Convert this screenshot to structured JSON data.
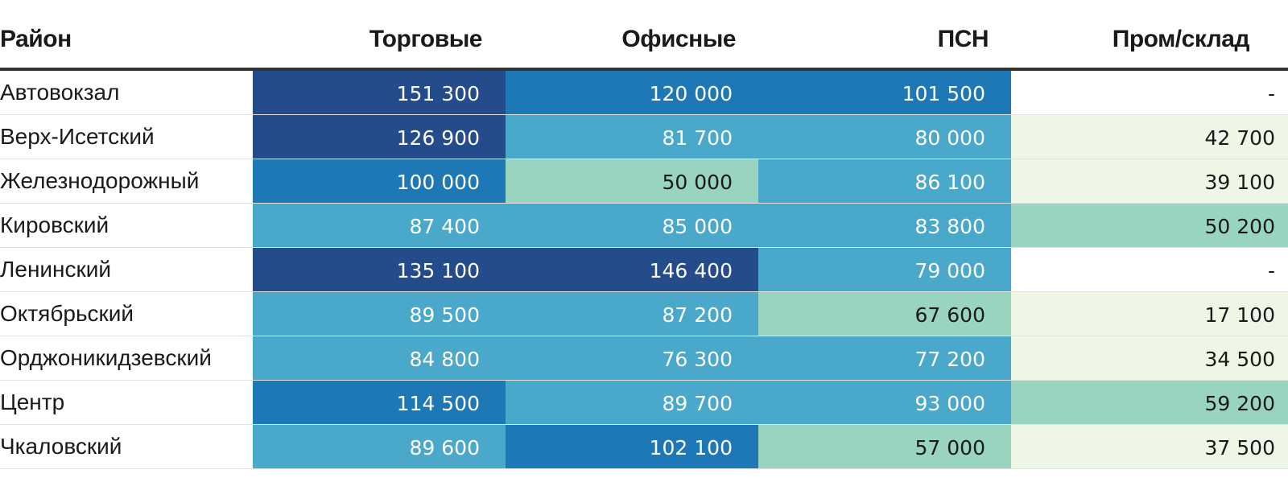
{
  "chart_data": {
    "type": "heatmap",
    "columns": [
      "Район",
      "Торговые",
      "Офисные",
      "ПСН",
      "Пром/склад"
    ],
    "rows": [
      {
        "name": "Автовокзал",
        "values": [
          "151 300",
          "120 000",
          "101 500",
          "-"
        ]
      },
      {
        "name": "Верх-Исетский",
        "values": [
          "126 900",
          "81 700",
          "80 000",
          "42 700"
        ]
      },
      {
        "name": "Железнодорожный",
        "values": [
          "100 000",
          "50 000",
          "86 100",
          "39 100"
        ]
      },
      {
        "name": "Кировский",
        "values": [
          "87 400",
          "85 000",
          "83 800",
          "50 200"
        ]
      },
      {
        "name": "Ленинский",
        "values": [
          "135 100",
          "146 400",
          "79 000",
          "-"
        ]
      },
      {
        "name": "Октябрьский",
        "values": [
          "89 500",
          "87 200",
          "67 600",
          "17 100"
        ]
      },
      {
        "name": "Орджоникидзевский",
        "values": [
          "84 800",
          "76 300",
          "77 200",
          "34 500"
        ]
      },
      {
        "name": "Центр",
        "values": [
          "114 500",
          "89 700",
          "93 000",
          "59 200"
        ]
      },
      {
        "name": "Чкаловский",
        "values": [
          "89 600",
          "102 100",
          "57 000",
          "37 500"
        ]
      }
    ],
    "numeric_values": [
      [
        151300,
        120000,
        101500,
        null
      ],
      [
        126900,
        81700,
        80000,
        42700
      ],
      [
        100000,
        50000,
        86100,
        39100
      ],
      [
        87400,
        85000,
        83800,
        50200
      ],
      [
        135100,
        146400,
        79000,
        null
      ],
      [
        89500,
        87200,
        67600,
        17100
      ],
      [
        84800,
        76300,
        77200,
        34500
      ],
      [
        114500,
        89700,
        93000,
        59200
      ],
      [
        89600,
        102100,
        57000,
        37500
      ]
    ],
    "color_bins": [
      {
        "min": 0,
        "max": 49999,
        "bg": "#eef7e6",
        "fg": "#1a1a1a"
      },
      {
        "min": 50000,
        "max": 74999,
        "bg": "#98d4c0",
        "fg": "#1a1a1a"
      },
      {
        "min": 75000,
        "max": 99999,
        "bg": "#4aa8cb",
        "fg": "#ffffff"
      },
      {
        "min": 100000,
        "max": 124999,
        "bg": "#1f78b6",
        "fg": "#ffffff"
      },
      {
        "min": 125000,
        "max": 999999,
        "bg": "#244b8a",
        "fg": "#ffffff"
      }
    ],
    "bin_overrides": [
      {
        "row": 3,
        "col": 3,
        "bg": "#98d4c0",
        "fg": "#1a1a1a"
      },
      {
        "row": 7,
        "col": 3,
        "bg": "#98d4c0",
        "fg": "#1a1a1a"
      }
    ],
    "empty_cell": {
      "bg": "#ffffff",
      "fg": "#1a1a1a"
    }
  }
}
